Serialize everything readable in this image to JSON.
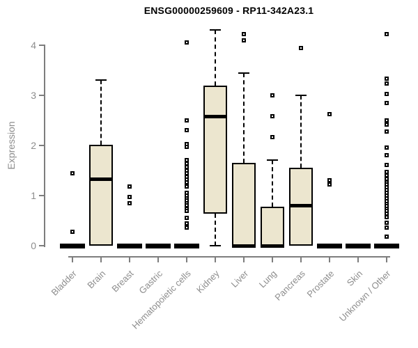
{
  "title": "ENSG00000259609 - RP11-342A23.1",
  "colors": {
    "box_fill": "#ECE6CF",
    "box_stroke": "#000000",
    "axis": "#7d7d7d",
    "label_gray": "#8d8d8d",
    "title_color": "#000000"
  },
  "chart_data": {
    "type": "boxplot",
    "title": "ENSG00000259609 - RP11-342A23.1",
    "xlabel": "",
    "ylabel": "Expression",
    "ylim": [
      0,
      4.35
    ],
    "yticks": [
      0,
      1,
      2,
      3,
      4
    ],
    "grid": false,
    "legend": "none",
    "categories": [
      "Bladder",
      "Brain",
      "Breast",
      "Gastric",
      "Hematopoietic cells",
      "Kidney",
      "Liver",
      "Lung",
      "Pancreas",
      "Prostate",
      "Skin",
      "Unknown / Other"
    ],
    "series": [
      {
        "category": "Bladder",
        "whisker_low": 0,
        "q1": 0,
        "median": 0,
        "q3": 0,
        "whisker_high": 0,
        "outliers": [
          1.45,
          0.28
        ]
      },
      {
        "category": "Brain",
        "whisker_low": 0,
        "q1": 0,
        "median": 1.33,
        "q3": 2.02,
        "whisker_high": 3.3,
        "outliers": []
      },
      {
        "category": "Breast",
        "whisker_low": 0,
        "q1": 0,
        "median": 0,
        "q3": 0,
        "whisker_high": 0,
        "outliers": [
          1.18,
          0.97,
          0.85
        ]
      },
      {
        "category": "Gastric",
        "whisker_low": 0,
        "q1": 0,
        "median": 0,
        "q3": 0,
        "whisker_high": 0,
        "outliers": []
      },
      {
        "category": "Hematopoietic cells",
        "whisker_low": 0,
        "q1": 0,
        "median": 0,
        "q3": 0,
        "whisker_high": 0,
        "outliers": [
          4.05,
          2.5,
          2.3,
          2.03,
          1.97,
          1.71,
          1.64,
          1.57,
          1.5,
          1.44,
          1.38,
          1.32,
          1.26,
          1.21,
          1.18,
          1.06,
          1.0,
          0.95,
          0.9,
          0.85,
          0.8,
          0.74,
          0.69,
          0.56,
          0.45,
          0.36
        ]
      },
      {
        "category": "Kidney",
        "whisker_low": 0,
        "q1": 0.64,
        "median": 2.58,
        "q3": 3.2,
        "whisker_high": 4.3,
        "outliers": []
      },
      {
        "category": "Liver",
        "whisker_low": 0,
        "q1": 0,
        "median": 0,
        "q3": 1.65,
        "whisker_high": 3.45,
        "outliers": [
          4.22,
          4.1
        ]
      },
      {
        "category": "Lung",
        "whisker_low": 0,
        "q1": 0,
        "median": 0,
        "q3": 0.78,
        "whisker_high": 1.71,
        "outliers": [
          3.0,
          2.58,
          2.17
        ]
      },
      {
        "category": "Pancreas",
        "whisker_low": 0,
        "q1": 0,
        "median": 0.81,
        "q3": 1.55,
        "whisker_high": 3.0,
        "outliers": [
          3.95
        ]
      },
      {
        "category": "Prostate",
        "whisker_low": 0,
        "q1": 0,
        "median": 0,
        "q3": 0,
        "whisker_high": 0,
        "outliers": [
          2.63,
          1.3,
          1.22
        ]
      },
      {
        "category": "Skin",
        "whisker_low": 0,
        "q1": 0,
        "median": 0,
        "q3": 0,
        "whisker_high": 0,
        "outliers": []
      },
      {
        "category": "Unknown / Other",
        "whisker_low": 0,
        "q1": 0,
        "median": 0,
        "q3": 0,
        "whisker_high": 0,
        "outliers": [
          4.22,
          3.33,
          3.24,
          3.03,
          2.85,
          2.5,
          2.42,
          2.28,
          1.96,
          1.8,
          1.61,
          1.47,
          1.4,
          1.33,
          1.27,
          1.22,
          1.17,
          1.11,
          1.05,
          1.0,
          0.94,
          0.89,
          0.84,
          0.79,
          0.74,
          0.69,
          0.64,
          0.57,
          0.46,
          0.36,
          0.18
        ]
      }
    ]
  }
}
